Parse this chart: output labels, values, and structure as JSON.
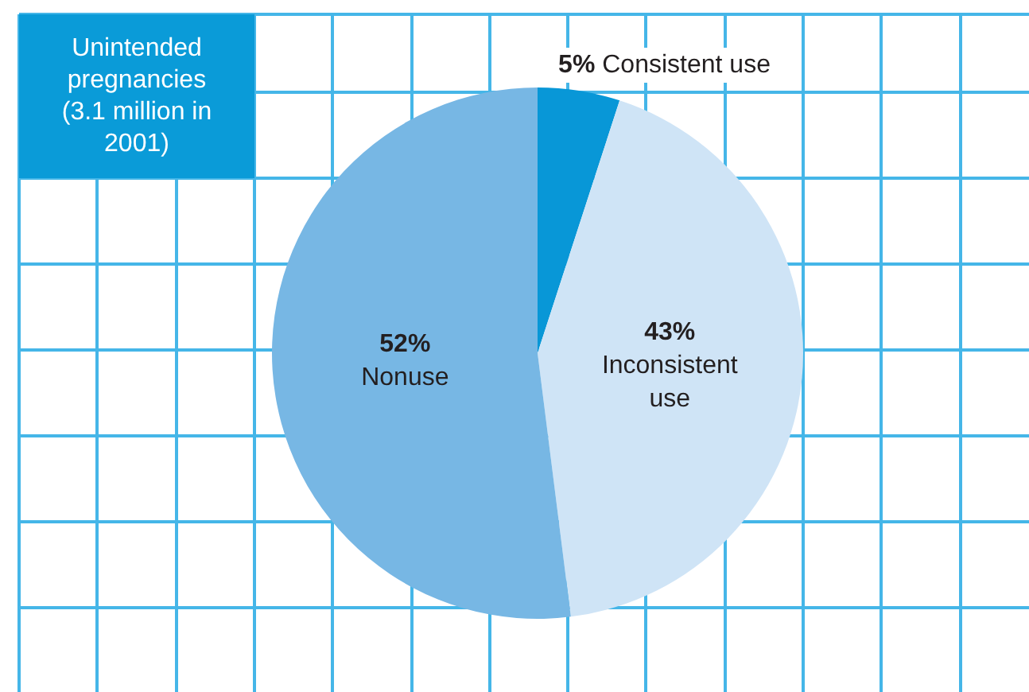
{
  "chart_data": {
    "type": "pie",
    "title": "Unintended pregnancies (3.1 million in 2001)",
    "categories": [
      "Consistent use",
      "Inconsistent use",
      "Nonuse"
    ],
    "values": [
      5,
      43,
      52
    ],
    "colors": [
      "#0897d7",
      "#cfe4f6",
      "#77b7e4"
    ],
    "value_labels": [
      "5%",
      "43%",
      "52%"
    ],
    "legend": false
  }
}
